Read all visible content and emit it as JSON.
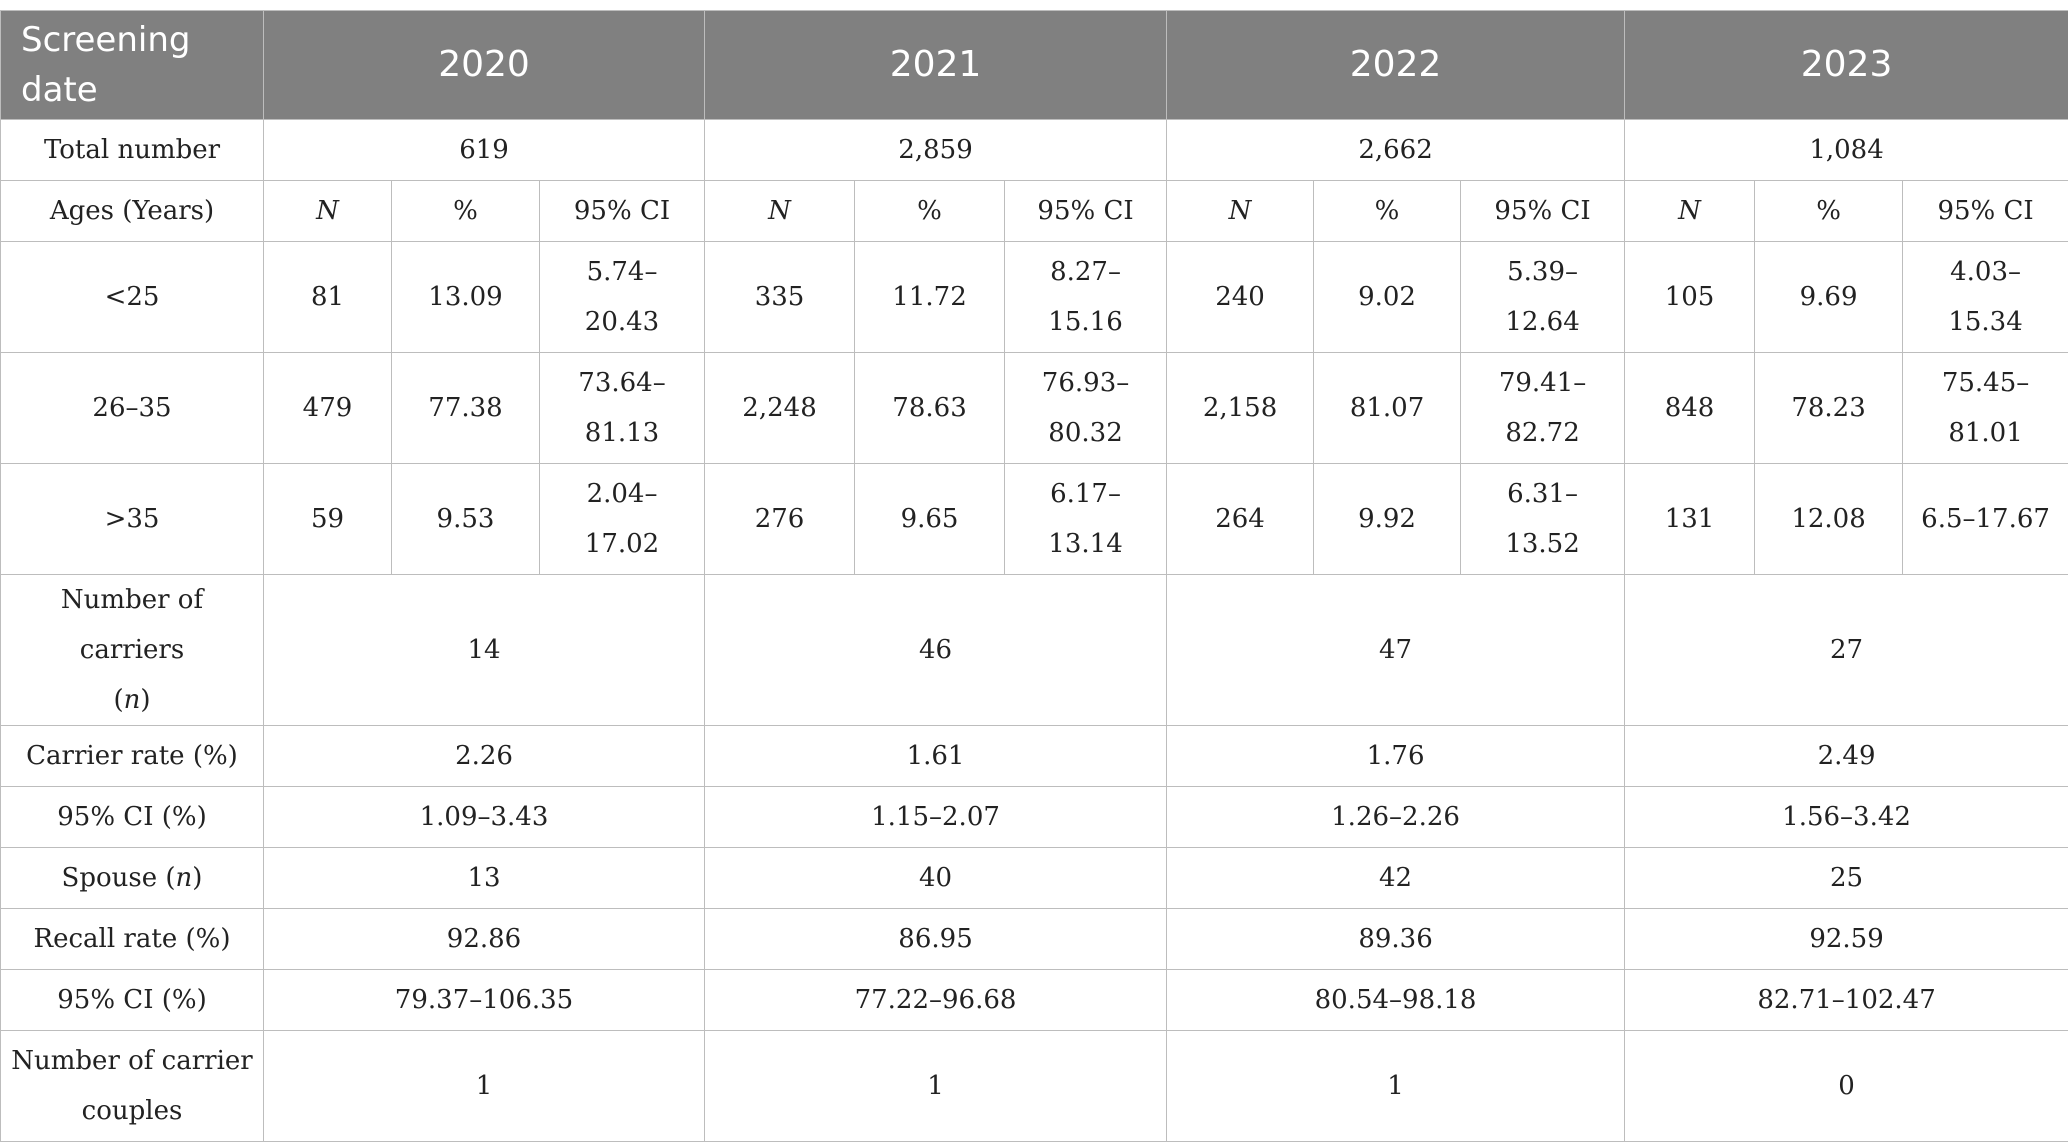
{
  "header": {
    "first_col": "Screening date",
    "years": [
      "2020",
      "2021",
      "2022",
      "2023"
    ]
  },
  "rows": {
    "total_number": {
      "label": "Total number",
      "values": [
        "619",
        "2,859",
        "2,662",
        "1,084"
      ]
    },
    "ages": {
      "label": "Ages (Years)",
      "sub_n": "N",
      "sub_pct": "%",
      "sub_ci": "95% CI"
    },
    "age_groups": [
      {
        "label": "<25",
        "cells": [
          {
            "n": "81",
            "pct": "13.09",
            "ci_a": "5.74–",
            "ci_b": "20.43"
          },
          {
            "n": "335",
            "pct": "11.72",
            "ci_a": "8.27–",
            "ci_b": "15.16"
          },
          {
            "n": "240",
            "pct": "9.02",
            "ci_a": "5.39–",
            "ci_b": "12.64"
          },
          {
            "n": "105",
            "pct": "9.69",
            "ci_a": "4.03–",
            "ci_b": "15.34"
          }
        ]
      },
      {
        "label": "26–35",
        "cells": [
          {
            "n": "479",
            "pct": "77.38",
            "ci_a": "73.64–",
            "ci_b": "81.13"
          },
          {
            "n": "2,248",
            "pct": "78.63",
            "ci_a": "76.93–",
            "ci_b": "80.32"
          },
          {
            "n": "2,158",
            "pct": "81.07",
            "ci_a": "79.41–",
            "ci_b": "82.72"
          },
          {
            "n": "848",
            "pct": "78.23",
            "ci_a": "75.45–",
            "ci_b": "81.01"
          }
        ]
      },
      {
        "label": ">35",
        "cells": [
          {
            "n": "59",
            "pct": "9.53",
            "ci_a": "2.04–",
            "ci_b": "17.02"
          },
          {
            "n": "276",
            "pct": "9.65",
            "ci_a": "6.17–",
            "ci_b": "13.14"
          },
          {
            "n": "264",
            "pct": "9.92",
            "ci_a": "6.31–",
            "ci_b": "13.52"
          },
          {
            "n": "131",
            "pct": "12.08",
            "ci_a": "6.5–17.67",
            "ci_b": ""
          }
        ]
      }
    ],
    "carriers": {
      "label_a": "Number of carriers",
      "label_b_open": "(",
      "label_b_n": "n",
      "label_b_close": ")",
      "values": [
        "14",
        "46",
        "47",
        "27"
      ]
    },
    "carrier_rate": {
      "label": "Carrier rate (%)",
      "values": [
        "2.26",
        "1.61",
        "1.76",
        "2.49"
      ]
    },
    "carrier_ci": {
      "label": "95% CI (%)",
      "values": [
        "1.09–3.43",
        "1.15–2.07",
        "1.26–2.26",
        "1.56–3.42"
      ]
    },
    "spouse": {
      "label_a": "Spouse (",
      "label_n": "n",
      "label_b": ")",
      "values": [
        "13",
        "40",
        "42",
        "25"
      ]
    },
    "recall_rate": {
      "label": "Recall rate (%)",
      "values": [
        "92.86",
        "86.95",
        "89.36",
        "92.59"
      ]
    },
    "recall_ci": {
      "label": "95% CI (%)",
      "values": [
        "79.37–106.35",
        "77.22–96.68",
        "80.54–98.18",
        "82.71–102.47"
      ]
    },
    "carrier_couples": {
      "label_a": "Number of carrier",
      "label_b": "couples",
      "values": [
        "1",
        "1",
        "1",
        "0"
      ]
    }
  }
}
